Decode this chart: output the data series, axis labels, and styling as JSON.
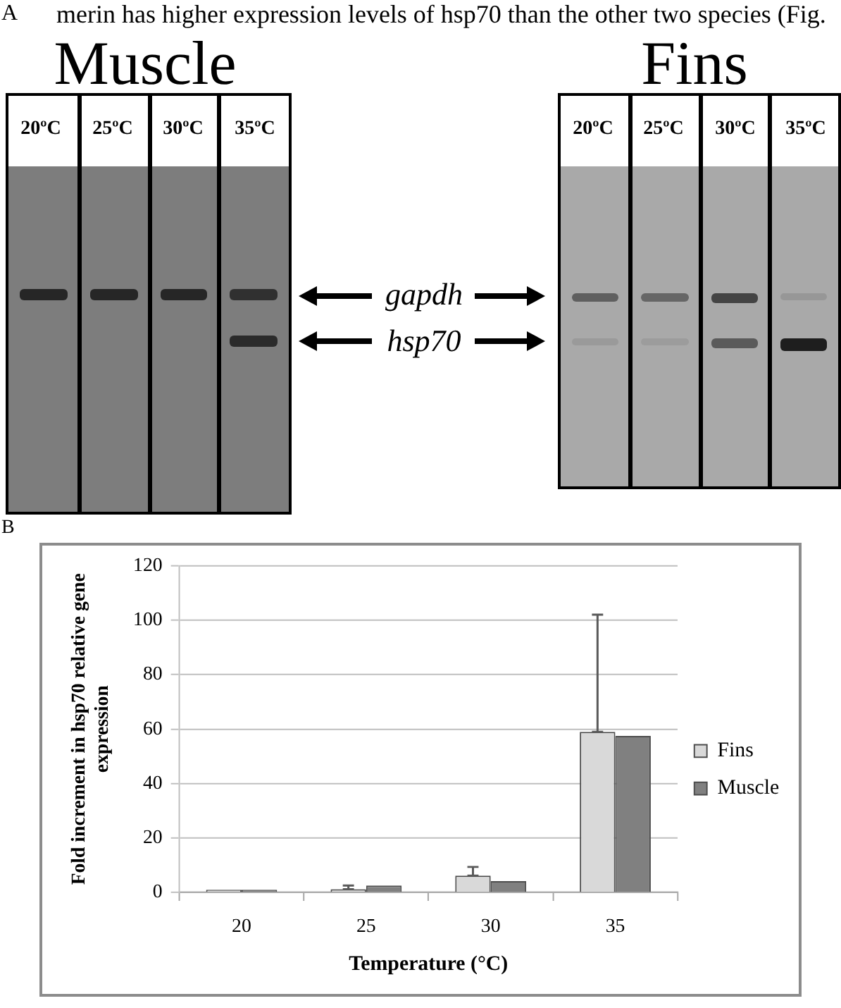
{
  "chart_data": {
    "type": "bar",
    "categories": [
      "20",
      "25",
      "30",
      "35"
    ],
    "series": [
      {
        "name": "Fins",
        "color": "#d9d9d9",
        "values": [
          1,
          1.2,
          6.2,
          59
        ],
        "errors": [
          null,
          [
            1.2,
            2.6
          ],
          [
            6.2,
            9.4
          ],
          [
            59,
            102
          ]
        ]
      },
      {
        "name": "Muscle",
        "color": "#808080",
        "values": [
          1,
          2.6,
          4.2,
          57.5
        ]
      }
    ],
    "xlabel": "Temperature (°C)",
    "ylabel": "Fold increment in hsp70 relative gene expression",
    "ylim": [
      0,
      120
    ],
    "yticks": [
      0,
      20,
      40,
      60,
      80,
      100,
      120
    ],
    "grid": "y",
    "legend": "right",
    "annotations": [
      "merin has higher expression levels of hsp70 than the other two species (Fig.",
      "A",
      "Muscle",
      "Fins",
      "20ºC",
      "25ºC",
      "30ºC",
      "35ºC",
      "20ºC",
      "25ºC",
      "30ºC",
      "35ºC",
      "gapdh",
      "hsp70",
      "B"
    ]
  }
}
